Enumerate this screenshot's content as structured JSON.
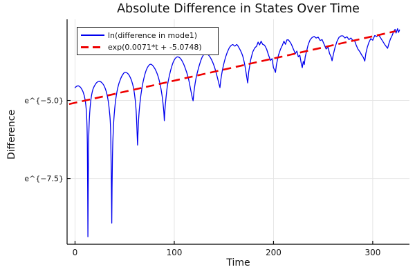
{
  "chart_data": {
    "type": "line",
    "title": "Absolute Difference in States Over Time",
    "xlabel": "Time",
    "ylabel": "Difference",
    "yscale": "ln",
    "xlim": [
      -8,
      337
    ],
    "ylim": [
      -9.61,
      -2.4
    ],
    "grid": true,
    "legend_position": "top-left",
    "background_color": "#ffffff",
    "grid_color": "#e4e4e4",
    "spine_color": "#000000",
    "text_color": "#151515",
    "xticks": {
      "values": [
        0,
        100,
        200,
        300
      ],
      "labels": [
        "0",
        "100",
        "200",
        "300"
      ]
    },
    "yticks": {
      "values": [
        -5.0,
        -7.5
      ],
      "labels": [
        "e^{−5.0}",
        "e^{−7.5}"
      ]
    },
    "series": [
      {
        "name": "ln(difference in mode1)",
        "color": "#0000ee",
        "style": "solid",
        "segments": [
          {
            "smooth": true,
            "pts": [
              [
                0,
                -4.59
              ],
              [
                2,
                -4.54
              ],
              [
                4,
                -4.54
              ],
              [
                6,
                -4.6
              ],
              [
                8,
                -4.72
              ],
              [
                10,
                -4.95
              ],
              [
                11.5,
                -5.4
              ],
              [
                12.4,
                -6.4
              ],
              [
                13,
                -9.37
              ]
            ]
          },
          {
            "smooth": true,
            "pts": [
              [
                13,
                -9.37
              ],
              [
                13.6,
                -6.6
              ],
              [
                14.5,
                -5.55
              ],
              [
                16,
                -4.98
              ],
              [
                18,
                -4.65
              ],
              [
                21,
                -4.46
              ],
              [
                24,
                -4.39
              ],
              [
                27,
                -4.43
              ],
              [
                30,
                -4.58
              ],
              [
                32.5,
                -4.85
              ],
              [
                34.5,
                -5.3
              ],
              [
                36,
                -6.1
              ],
              [
                37,
                -8.93
              ]
            ]
          },
          {
            "smooth": true,
            "pts": [
              [
                37,
                -8.93
              ],
              [
                37.7,
                -6.8
              ],
              [
                38.8,
                -5.8
              ],
              [
                40.5,
                -5.1
              ],
              [
                43,
                -4.6
              ],
              [
                46,
                -4.3
              ],
              [
                49,
                -4.13
              ],
              [
                51,
                -4.1
              ],
              [
                54,
                -4.17
              ],
              [
                57,
                -4.37
              ],
              [
                59.5,
                -4.7
              ],
              [
                61.5,
                -5.3
              ],
              [
                63,
                -6.43
              ]
            ]
          },
          {
            "smooth": true,
            "pts": [
              [
                63,
                -6.43
              ],
              [
                64,
                -5.65
              ],
              [
                65.5,
                -5.05
              ],
              [
                68,
                -4.5
              ],
              [
                71,
                -4.1
              ],
              [
                74,
                -3.89
              ],
              [
                76.5,
                -3.84
              ],
              [
                79,
                -3.91
              ],
              [
                82,
                -4.08
              ],
              [
                85,
                -4.38
              ],
              [
                87.5,
                -4.8
              ],
              [
                89.3,
                -5.3
              ],
              [
                90,
                -5.65
              ]
            ]
          },
          {
            "smooth": true,
            "pts": [
              [
                90,
                -5.65
              ],
              [
                91,
                -5.15
              ],
              [
                93,
                -4.55
              ],
              [
                96,
                -4.08
              ],
              [
                99,
                -3.77
              ],
              [
                102,
                -3.62
              ],
              [
                105,
                -3.62
              ],
              [
                108,
                -3.74
              ],
              [
                111,
                -3.96
              ],
              [
                114,
                -4.26
              ],
              [
                116.5,
                -4.65
              ],
              [
                118.3,
                -4.93
              ],
              [
                119,
                -5.01
              ]
            ]
          },
          {
            "smooth": true,
            "pts": [
              [
                119,
                -5.01
              ],
              [
                120,
                -4.68
              ],
              [
                122,
                -4.28
              ],
              [
                125,
                -3.9
              ],
              [
                128,
                -3.62
              ],
              [
                131,
                -3.5
              ],
              [
                134,
                -3.53
              ],
              [
                137,
                -3.66
              ],
              [
                140,
                -3.88
              ],
              [
                142.5,
                -4.15
              ],
              [
                144.5,
                -4.4
              ],
              [
                146,
                -4.59
              ]
            ]
          },
          {
            "smooth": true,
            "pts": [
              [
                146,
                -4.59
              ],
              [
                147,
                -4.32
              ],
              [
                149,
                -3.95
              ],
              [
                152,
                -3.58
              ],
              [
                155,
                -3.34
              ],
              [
                157,
                -3.25
              ],
              [
                159,
                -3.21
              ],
              [
                161,
                -3.26
              ],
              [
                163,
                -3.21
              ],
              [
                165,
                -3.3
              ],
              [
                167,
                -3.42
              ],
              [
                169,
                -3.58
              ],
              [
                171,
                -3.85
              ],
              [
                172.8,
                -4.2
              ],
              [
                174,
                -4.44
              ]
            ]
          },
          {
            "smooth": false,
            "pts": [
              [
                174,
                -4.44
              ],
              [
                175,
                -4.08
              ],
              [
                177,
                -3.7
              ],
              [
                179,
                -3.45
              ],
              [
                181,
                -3.32
              ],
              [
                183,
                -3.26
              ],
              [
                184.5,
                -3.13
              ],
              [
                186,
                -3.22
              ],
              [
                187.5,
                -3.1
              ],
              [
                189,
                -3.2
              ],
              [
                191,
                -3.23
              ],
              [
                193,
                -3.35
              ],
              [
                195,
                -3.55
              ],
              [
                197,
                -3.72
              ],
              [
                198.5,
                -3.66
              ],
              [
                200,
                -3.95
              ],
              [
                201,
                -4.02
              ],
              [
                202,
                -4.1
              ]
            ]
          },
          {
            "smooth": false,
            "pts": [
              [
                202,
                -4.1
              ],
              [
                203,
                -3.85
              ],
              [
                205,
                -3.55
              ],
              [
                207,
                -3.36
              ],
              [
                209,
                -3.23
              ],
              [
                210.5,
                -3.1
              ],
              [
                212,
                -3.2
              ],
              [
                213.5,
                -3.06
              ],
              [
                215,
                -3.06
              ],
              [
                216.5,
                -3.12
              ],
              [
                218,
                -3.2
              ],
              [
                220,
                -3.35
              ],
              [
                222,
                -3.5
              ],
              [
                223.5,
                -3.42
              ],
              [
                225,
                -3.6
              ],
              [
                226.5,
                -3.55
              ],
              [
                228,
                -3.82
              ],
              [
                229,
                -3.95
              ]
            ]
          },
          {
            "smooth": false,
            "pts": [
              [
                229,
                -3.95
              ],
              [
                230,
                -3.75
              ],
              [
                231,
                -3.85
              ],
              [
                232,
                -3.6
              ],
              [
                233.5,
                -3.4
              ],
              [
                235,
                -3.2
              ],
              [
                237,
                -3.05
              ],
              [
                239,
                -2.98
              ],
              [
                241,
                -2.95
              ],
              [
                243,
                -3.0
              ],
              [
                245,
                -2.97
              ],
              [
                247,
                -3.08
              ],
              [
                249,
                -3.05
              ],
              [
                251,
                -3.2
              ],
              [
                253,
                -3.35
              ],
              [
                255,
                -3.3
              ],
              [
                256.5,
                -3.5
              ],
              [
                258,
                -3.6
              ],
              [
                259,
                -3.73
              ]
            ]
          },
          {
            "smooth": false,
            "pts": [
              [
                259,
                -3.73
              ],
              [
                260.5,
                -3.5
              ],
              [
                262,
                -3.3
              ],
              [
                264,
                -3.1
              ],
              [
                266,
                -2.98
              ],
              [
                268,
                -2.93
              ],
              [
                270,
                -2.93
              ],
              [
                272,
                -3.0
              ],
              [
                274,
                -2.96
              ],
              [
                276,
                -3.05
              ],
              [
                278,
                -3.0
              ],
              [
                280,
                -3.08
              ],
              [
                281.5,
                -3.07
              ],
              [
                283,
                -3.2
              ],
              [
                285,
                -3.35
              ],
              [
                287,
                -3.44
              ],
              [
                289,
                -3.55
              ],
              [
                290.5,
                -3.62
              ],
              [
                292,
                -3.74
              ]
            ]
          },
          {
            "smooth": false,
            "pts": [
              [
                292,
                -3.74
              ],
              [
                293,
                -3.5
              ],
              [
                294.5,
                -3.3
              ],
              [
                296,
                -3.15
              ],
              [
                298,
                -3.02
              ],
              [
                300,
                -3.07
              ],
              [
                302,
                -2.92
              ],
              [
                304,
                -2.95
              ],
              [
                306,
                -2.9
              ],
              [
                308,
                -3.0
              ],
              [
                310,
                -3.1
              ],
              [
                312,
                -3.2
              ],
              [
                313.5,
                -3.27
              ],
              [
                315,
                -3.33
              ]
            ]
          },
          {
            "smooth": false,
            "pts": [
              [
                315,
                -3.33
              ],
              [
                316.5,
                -3.15
              ],
              [
                318,
                -3.02
              ],
              [
                319.5,
                -2.92
              ],
              [
                321,
                -2.8
              ],
              [
                322.5,
                -2.72
              ],
              [
                323.5,
                -2.84
              ],
              [
                325,
                -2.7
              ],
              [
                326,
                -2.82
              ],
              [
                327,
                -2.74
              ]
            ]
          }
        ]
      },
      {
        "name": "exp(0.0071*t + -5.0748)",
        "color": "#ee0000",
        "style": "dashed",
        "fit": {
          "slope": 0.0071,
          "intercept": -5.0748,
          "t_range": [
            -6,
            323
          ]
        }
      }
    ]
  }
}
